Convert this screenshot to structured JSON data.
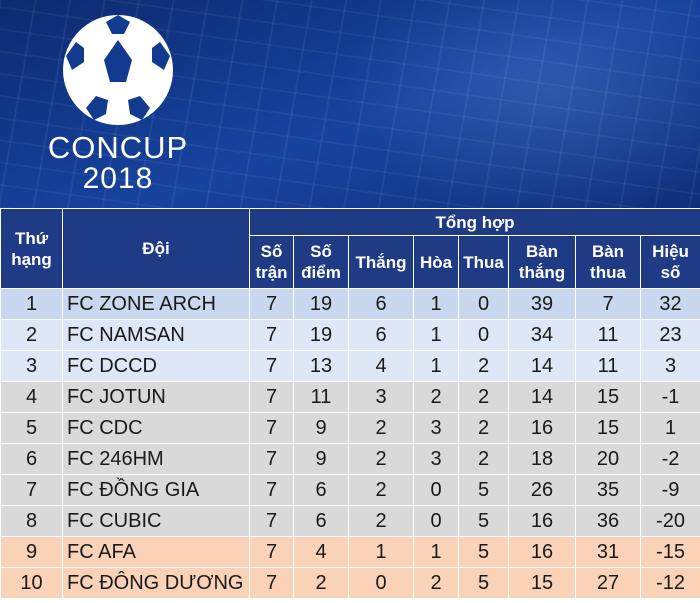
{
  "banner": {
    "title": "CONCUP",
    "year": "2018",
    "icon": "soccer-ball-icon"
  },
  "table": {
    "header": {
      "rank": "Thứ hạng",
      "team": "Đội",
      "group": "Tổng hợp",
      "played": "Số trận",
      "points": "Số điểm",
      "wins": "Thắng",
      "draws": "Hòa",
      "losses": "Thua",
      "goals_for": "Bàn thắng",
      "goals_against": "Bàn thua",
      "goal_diff": "Hiệu số"
    },
    "rows": [
      {
        "rank": "1",
        "team": "FC ZONE ARCH",
        "played": "7",
        "points": "19",
        "wins": "6",
        "draws": "1",
        "losses": "0",
        "gf": "39",
        "ga": "7",
        "gd": "32"
      },
      {
        "rank": "2",
        "team": "FC NAMSAN",
        "played": "7",
        "points": "19",
        "wins": "6",
        "draws": "1",
        "losses": "0",
        "gf": "34",
        "ga": "11",
        "gd": "23"
      },
      {
        "rank": "3",
        "team": "FC DCCD",
        "played": "7",
        "points": "13",
        "wins": "4",
        "draws": "1",
        "losses": "2",
        "gf": "14",
        "ga": "11",
        "gd": "3"
      },
      {
        "rank": "4",
        "team": "FC JOTUN",
        "played": "7",
        "points": "11",
        "wins": "3",
        "draws": "2",
        "losses": "2",
        "gf": "14",
        "ga": "15",
        "gd": "-1"
      },
      {
        "rank": "5",
        "team": "FC CDC",
        "played": "7",
        "points": "9",
        "wins": "2",
        "draws": "3",
        "losses": "2",
        "gf": "16",
        "ga": "15",
        "gd": "1"
      },
      {
        "rank": "6",
        "team": "FC 246HM",
        "played": "7",
        "points": "9",
        "wins": "2",
        "draws": "3",
        "losses": "2",
        "gf": "18",
        "ga": "20",
        "gd": "-2"
      },
      {
        "rank": "7",
        "team": "FC ĐỒNG GIA",
        "played": "7",
        "points": "6",
        "wins": "2",
        "draws": "0",
        "losses": "5",
        "gf": "26",
        "ga": "35",
        "gd": "-9"
      },
      {
        "rank": "8",
        "team": "FC CUBIC",
        "played": "7",
        "points": "6",
        "wins": "2",
        "draws": "0",
        "losses": "5",
        "gf": "16",
        "ga": "36",
        "gd": "-20"
      },
      {
        "rank": "9",
        "team": "FC AFA",
        "played": "7",
        "points": "4",
        "wins": "1",
        "draws": "1",
        "losses": "5",
        "gf": "16",
        "ga": "31",
        "gd": "-15"
      },
      {
        "rank": "10",
        "team": "FC ĐÔNG DƯƠNG",
        "played": "7",
        "points": "2",
        "wins": "0",
        "draws": "2",
        "losses": "5",
        "gf": "15",
        "ga": "27",
        "gd": "-12"
      }
    ]
  },
  "colors": {
    "header_bg": "#1f3b86",
    "row_top": "#c9d8ee",
    "row_upper": "#dde7f5",
    "row_mid": "#d9d9d9",
    "row_bottom": "#f9d2b8"
  }
}
